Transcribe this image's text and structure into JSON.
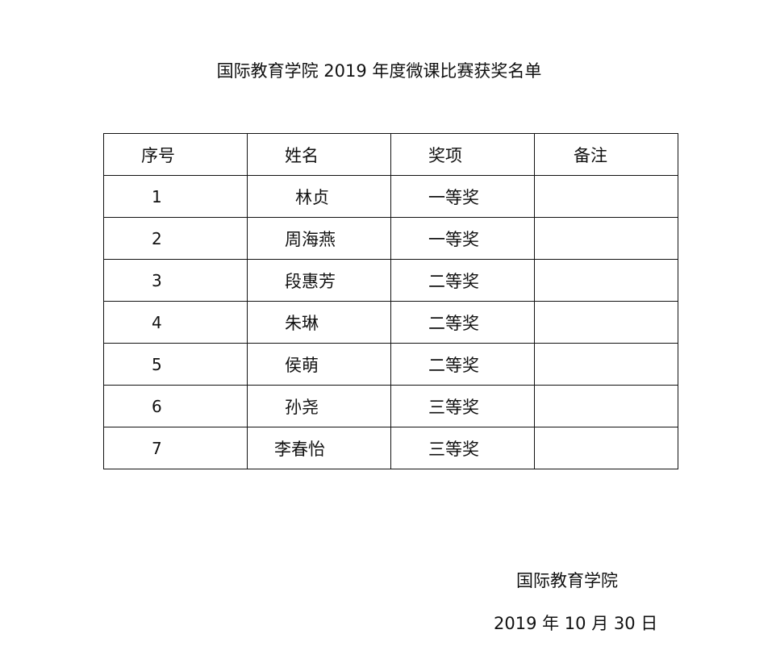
{
  "title": "国际教育学院 2019 年度微课比赛获奖名单",
  "table": {
    "headers": [
      "序号",
      "姓名",
      "奖项",
      "备注"
    ],
    "rows": [
      {
        "no": "1",
        "name": "林贞",
        "award": "一等奖",
        "note": ""
      },
      {
        "no": "2",
        "name": "周海燕",
        "award": "一等奖",
        "note": ""
      },
      {
        "no": "3",
        "name": "段惠芳",
        "award": "二等奖",
        "note": ""
      },
      {
        "no": "4",
        "name": "朱琳",
        "award": "二等奖",
        "note": ""
      },
      {
        "no": "5",
        "name": "侯萌",
        "award": "二等奖",
        "note": ""
      },
      {
        "no": "6",
        "name": "孙尧",
        "award": "三等奖",
        "note": ""
      },
      {
        "no": "7",
        "name": "李春怡",
        "award": "三等奖",
        "note": ""
      }
    ]
  },
  "footer": {
    "org": "国际教育学院",
    "date": "2019 年 10 月 30 日"
  }
}
